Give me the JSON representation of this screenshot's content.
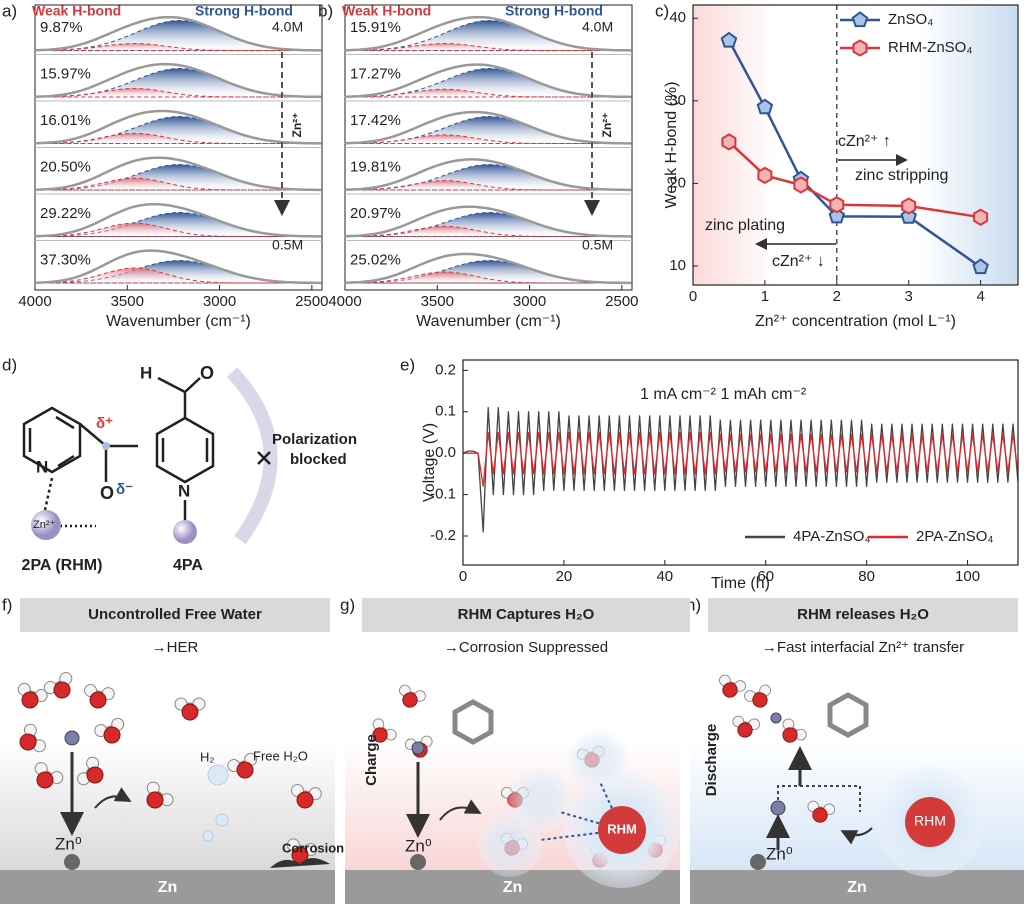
{
  "panel_labels": [
    "a)",
    "b)",
    "c)",
    "d)",
    "e)",
    "f)",
    "g)",
    "h)"
  ],
  "spectra": [
    {
      "weak_label": "Weak H-bond",
      "strong_label": "Strong H-bond",
      "high_label": "4.0M",
      "low_label": "0.5M",
      "arrow_label": "Zn²⁺",
      "percentages": [
        "9.87%",
        "15.97%",
        "16.01%",
        "20.50%",
        "29.22%",
        "37.30%"
      ],
      "xlabel": "Wavenumber (cm⁻¹)",
      "xlim": [
        4000,
        2445
      ],
      "xticks": [
        4000,
        3500,
        3000,
        2500
      ]
    },
    {
      "weak_label": "Weak H-bond",
      "strong_label": "Strong H-bond",
      "high_label": "4.0M",
      "low_label": "0.5M",
      "arrow_label": "Zn²⁺",
      "percentages": [
        "15.91%",
        "17.27%",
        "17.42%",
        "19.81%",
        "20.97%",
        "25.02%"
      ],
      "xlabel": "Wavenumber (cm⁻¹)",
      "xlim": [
        4000,
        2445
      ],
      "xticks": [
        4000,
        3500,
        3000,
        2500
      ]
    }
  ],
  "chart_data": [
    {
      "type": "line",
      "xlabel": "Zn²⁺ concentration (mol L⁻¹)",
      "ylabel": "Weak H-bond (%)",
      "x": [
        0.5,
        1,
        1.5,
        2,
        3,
        4
      ],
      "series": [
        {
          "name": "ZnSO₄",
          "color": "#2f5597",
          "marker": "pentagon",
          "values": [
            37.3,
            29.22,
            20.5,
            16.01,
            15.97,
            9.87
          ]
        },
        {
          "name": "RHM-ZnSO₄",
          "color": "#d9373c",
          "marker": "hexagon",
          "values": [
            25.02,
            20.97,
            19.81,
            17.42,
            17.27,
            15.91
          ]
        }
      ],
      "xlim": [
        0,
        4.52
      ],
      "ylim": [
        7.7,
        41.6
      ],
      "xticks": [
        0,
        1,
        2,
        3,
        4
      ],
      "yticks": [
        10,
        20,
        30,
        40
      ],
      "legend": "upper right",
      "divider": 2,
      "annotations": [
        "cZn²⁺ ↑",
        "zinc stripping",
        "zinc plating",
        "cZn²⁺ ↓"
      ]
    },
    {
      "type": "line",
      "xlabel": "Time (h)",
      "ylabel": "Voltage (V)",
      "annotations": [
        "1 mA cm⁻² 1 mAh cm⁻²"
      ],
      "x": [
        0,
        1,
        2,
        3,
        4,
        5,
        6,
        7,
        8,
        9,
        10,
        11,
        12,
        13,
        14,
        15,
        16,
        17,
        18,
        19,
        20,
        21,
        22,
        23,
        24,
        25,
        26,
        27,
        28,
        29,
        30,
        31,
        32,
        33,
        34,
        35,
        36,
        37,
        38,
        39,
        40,
        41,
        42,
        43,
        44,
        45,
        46,
        47,
        48,
        49,
        50,
        51,
        52,
        53,
        54,
        55,
        56,
        57,
        58,
        59,
        60,
        61,
        62,
        63,
        64,
        65,
        66,
        67,
        68,
        69,
        70,
        71,
        72,
        73,
        74,
        75,
        76,
        77,
        78,
        79,
        80,
        81,
        82,
        83,
        84,
        85,
        86,
        87,
        88,
        89,
        90,
        91,
        92,
        93,
        94,
        95,
        96,
        97,
        98,
        99,
        100,
        101,
        102,
        103,
        104,
        105,
        106,
        107,
        108,
        109,
        110
      ],
      "series": [
        {
          "name": "4PA-ZnSO₄",
          "color": "#444444",
          "values": [
            0,
            0.005,
            0.005,
            0,
            -0.19,
            0.11,
            -0.1,
            0.11,
            -0.1,
            0.1,
            -0.1,
            0.1,
            -0.1,
            0.1,
            -0.1,
            0.1,
            -0.09,
            0.1,
            -0.09,
            0.1,
            -0.09,
            0.09,
            -0.09,
            0.09,
            -0.09,
            0.09,
            -0.09,
            0.09,
            -0.09,
            0.09,
            -0.09,
            0.09,
            -0.09,
            0.09,
            -0.09,
            0.09,
            -0.09,
            0.09,
            -0.09,
            0.09,
            -0.09,
            0.09,
            -0.09,
            0.09,
            -0.09,
            0.09,
            -0.09,
            0.09,
            -0.09,
            0.09,
            -0.09,
            0.08,
            -0.08,
            0.08,
            -0.08,
            0.08,
            -0.08,
            0.08,
            -0.08,
            0.08,
            -0.08,
            0.08,
            -0.08,
            0.08,
            -0.08,
            0.08,
            -0.08,
            0.08,
            -0.08,
            0.08,
            -0.08,
            0.08,
            -0.08,
            0.08,
            -0.08,
            0.08,
            -0.08,
            0.08,
            -0.08,
            0.08,
            -0.08,
            0.07,
            -0.07,
            0.07,
            -0.07,
            0.07,
            -0.07,
            0.07,
            -0.07,
            0.07,
            -0.07,
            0.07,
            -0.07,
            0.07,
            -0.07,
            0.07,
            -0.07,
            0.07,
            -0.07,
            0.07,
            -0.07,
            0.07,
            -0.07,
            0.07,
            -0.07,
            0.07,
            -0.07,
            0.07,
            -0.07,
            0.07,
            -0.07
          ]
        },
        {
          "name": "2PA-ZnSO₄",
          "color": "#e0282e",
          "values": [
            0,
            0,
            0,
            0,
            -0.08,
            0.05,
            -0.05,
            0.05,
            -0.05,
            0.05,
            -0.05,
            0.05,
            -0.05,
            0.05,
            -0.05,
            0.05,
            -0.05,
            0.05,
            -0.05,
            0.05,
            -0.05,
            0.05,
            -0.05,
            0.05,
            -0.05,
            0.05,
            -0.05,
            0.05,
            -0.05,
            0.05,
            -0.05,
            0.05,
            -0.05,
            0.05,
            -0.05,
            0.05,
            -0.05,
            0.05,
            -0.05,
            0.05,
            -0.05,
            0.05,
            -0.05,
            0.05,
            -0.05,
            0.05,
            -0.05,
            0.05,
            -0.05,
            0.05,
            -0.05,
            0.045,
            -0.045,
            0.045,
            -0.045,
            0.045,
            -0.045,
            0.045,
            -0.045,
            0.045,
            -0.045,
            0.045,
            -0.045,
            0.045,
            -0.045,
            0.045,
            -0.045,
            0.045,
            -0.045,
            0.045,
            -0.045,
            0.045,
            -0.045,
            0.045,
            -0.045,
            0.045,
            -0.045,
            0.045,
            -0.045,
            0.045,
            -0.045,
            0.045,
            -0.045,
            0.045,
            -0.045,
            0.045,
            -0.045,
            0.045,
            -0.045,
            0.045,
            -0.045,
            0.045,
            -0.045,
            0.045,
            -0.045,
            0.045,
            -0.045,
            0.045,
            -0.045,
            0.045,
            -0.045,
            0.045,
            -0.045,
            0.045,
            -0.045,
            0.045,
            -0.045,
            0.045,
            -0.045,
            0.045,
            -0.045
          ]
        }
      ],
      "xlim": [
        0,
        110
      ],
      "ylim": [
        -0.27,
        0.225
      ],
      "xticks": [
        0,
        20,
        40,
        60,
        80,
        100
      ],
      "yticks": [
        -0.2,
        -0.1,
        {
          "value": 0,
          "label": "0.0"
        },
        0.1,
        0.2
      ],
      "legend": "lower right"
    }
  ],
  "molecules": {
    "atoms_h": [
      "H"
    ],
    "atoms_o": [
      "O",
      "O"
    ],
    "atoms_n": [
      "N",
      "N"
    ],
    "delta_plus": "δ⁺",
    "delta_minus": "δ⁻",
    "zn_ion": "Zn²⁺",
    "blocked": [
      "Polarization",
      "blocked"
    ],
    "label_2pa": "2PA (RHM)",
    "label_4pa": "4PA"
  },
  "schemes": [
    {
      "title": "Uncontrolled Free Water",
      "subtitle": "→HER",
      "h2": "H₂",
      "free_water": "Free H₂O",
      "corrosion": "Corrosion",
      "zn0": "Zn⁰",
      "electrode": "Zn"
    },
    {
      "title": "RHM Captures H₂O",
      "subtitle": "→Corrosion Suppressed",
      "side": "Charge",
      "rhm": "RHM",
      "zn0": "Zn⁰",
      "electrode": "Zn"
    },
    {
      "title": "RHM releases H₂O",
      "subtitle": "→Fast interfacial Zn²⁺ transfer",
      "side": "Discharge",
      "rhm": "RHM",
      "zn0": "Zn⁰",
      "electrode": "Zn"
    }
  ]
}
